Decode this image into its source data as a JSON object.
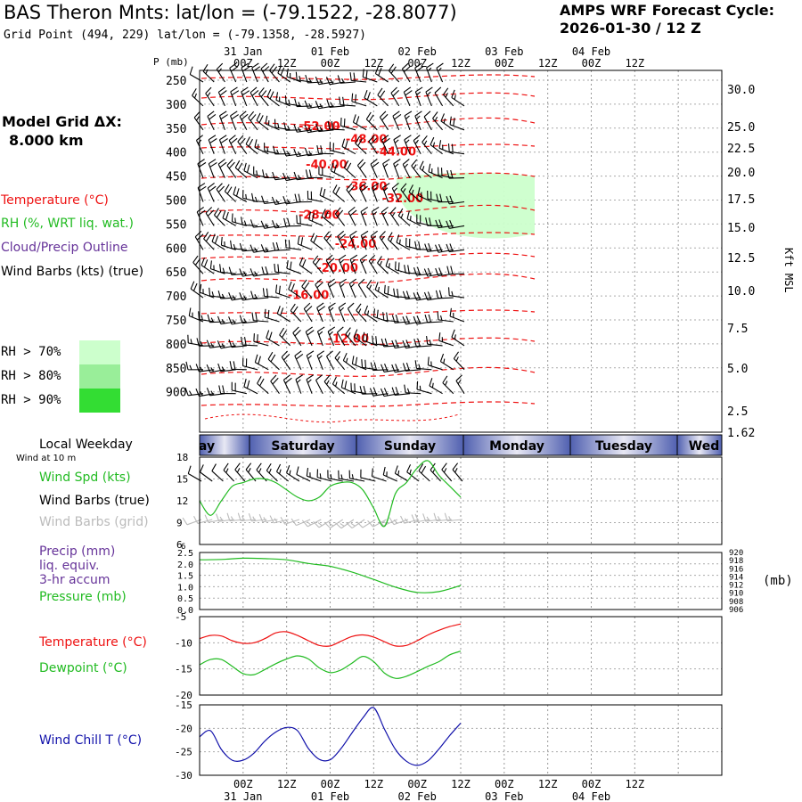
{
  "header": {
    "title": "BAS Theron Mnts:  lat/lon = (-79.1522, -28.8077)",
    "grid_point": "Grid Point (494, 229) lat/lon = (-79.1358, -28.5927)",
    "cycle_line1": "AMPS WRF Forecast Cycle:",
    "cycle_line2": "2026-01-30 / 12  Z",
    "model_dx_label": "Model Grid ΔX:",
    "model_dx_value": "8.000 km"
  },
  "legend": {
    "temperature": "Temperature (°C)",
    "rh": "RH (%, WRT liq. wat.)",
    "cloud": "Cloud/Precip Outline",
    "wind_barbs": "Wind Barbs (kts) (true)",
    "rh70": "RH > 70%",
    "rh80": "RH > 80%",
    "rh90": "RH > 90%",
    "local_weekday": "Local Weekday",
    "wind_at_10m": "Wind at 10 m",
    "wind_spd": "Wind Spd (kts)",
    "wind_barbs_true": "Wind Barbs (true)",
    "wind_barbs_grid": "Wind Barbs (grid)",
    "precip1": "Precip (mm)",
    "precip2": "liq. equiv.",
    "precip3": "3-hr accum",
    "pressure": "Pressure (mb)",
    "temp2": "Temperature (°C)",
    "dewpoint": "Dewpoint (°C)",
    "windchill": "Wind Chill T (°C)"
  },
  "colors": {
    "temperature": "#ee1111",
    "rh70": "#ccffcc",
    "rh80": "#99ee99",
    "rh90": "#33dd33",
    "windspd": "#22bb22",
    "cloud": "#663399",
    "windchill": "#1111aa",
    "weekday_dark": "#5060b0",
    "weekday_light": "#e8e8f4"
  },
  "axes": {
    "p_label": "P (mb)",
    "kft_label": "Kft MSL",
    "mb_unit": "(mb)",
    "time_ticks": [
      "00Z",
      "12Z",
      "00Z",
      "12Z",
      "00Z",
      "12Z",
      "00Z",
      "12Z",
      "00Z",
      "12Z"
    ],
    "date_labels": [
      "31 Jan",
      "01 Feb",
      "02 Feb",
      "03 Feb",
      "04 Feb"
    ],
    "weekdays": [
      "ay",
      "Saturday",
      "Sunday",
      "Monday",
      "Tuesday",
      "Wed"
    ]
  },
  "chart_data": [
    {
      "type": "contour",
      "panel": "sounding",
      "x_unit": "hours since 2026-01-30 12Z",
      "xlim": [
        0,
        144
      ],
      "pressure_levels": [
        250,
        300,
        350,
        400,
        450,
        500,
        550,
        600,
        650,
        700,
        750,
        800,
        850,
        900
      ],
      "right_axis_kft_labels": [
        "30.0",
        "25.0",
        "22.5",
        "20.0",
        "17.5",
        "15.0",
        "12.5",
        "10.0",
        "7.5",
        "5.0",
        "2.5",
        "1.62"
      ],
      "temperature_contour_labels": [
        {
          "text": "-52.00",
          "x": 33,
          "p": 345
        },
        {
          "text": "-48.00",
          "x": 46,
          "p": 372
        },
        {
          "text": "-44.00",
          "x": 54,
          "p": 398
        },
        {
          "text": "-40.00",
          "x": 35,
          "p": 425
        },
        {
          "text": "-36.00",
          "x": 46,
          "p": 470
        },
        {
          "text": "-32.00",
          "x": 56,
          "p": 495
        },
        {
          "text": "-28.00",
          "x": 33,
          "p": 530
        },
        {
          "text": "-24.00",
          "x": 43,
          "p": 590
        },
        {
          "text": "-20.00",
          "x": 38,
          "p": 640
        },
        {
          "text": "-16.00",
          "x": 30,
          "p": 697
        },
        {
          "text": "-12.00",
          "x": 41,
          "p": 788
        }
      ]
    },
    {
      "type": "line",
      "panel": "surface_wind",
      "title": "Wind Spd (kts)",
      "ylim": [
        6,
        18
      ],
      "y_ticks": [
        9,
        12,
        15,
        18
      ],
      "x": [
        0,
        3,
        6,
        9,
        12,
        15,
        18,
        21,
        24,
        27,
        30,
        33,
        36,
        39,
        42,
        45,
        48,
        51,
        54,
        57,
        60,
        63,
        66,
        69,
        72
      ],
      "series": [
        {
          "name": "Wind Spd (kts)",
          "values": [
            12,
            10,
            12,
            14,
            14.5,
            15,
            15,
            14.5,
            13.5,
            12.5,
            12,
            12.5,
            14,
            14.5,
            14.5,
            13.5,
            11,
            8.5,
            13,
            14.5,
            16.5,
            17.5,
            15.5,
            14,
            12.5
          ]
        }
      ]
    },
    {
      "type": "line",
      "panel": "pressure_precip",
      "left_ylim": [
        0,
        2.5
      ],
      "left_ticks": [
        "0.0",
        "0.5",
        "1.0",
        "1.5",
        "2.0",
        "2.5"
      ],
      "right_ylim": [
        906,
        920
      ],
      "right_ticks": [
        "906",
        "908",
        "910",
        "912",
        "914",
        "916",
        "918",
        "920"
      ],
      "x": [
        0,
        6,
        12,
        18,
        24,
        30,
        36,
        42,
        48,
        54,
        60,
        66,
        72
      ],
      "series": [
        {
          "name": "Pressure (mb)",
          "values": [
            918.2,
            918.3,
            918.6,
            918.5,
            918.2,
            917.3,
            916.6,
            915.2,
            913.4,
            911.5,
            910.2,
            910.4,
            911.9
          ]
        }
      ]
    },
    {
      "type": "line",
      "panel": "temperature",
      "ylim": [
        -20,
        -5
      ],
      "y_ticks": [
        -20,
        -15,
        -10,
        -5
      ],
      "x": [
        0,
        3,
        6,
        9,
        12,
        15,
        18,
        21,
        24,
        27,
        30,
        33,
        36,
        39,
        42,
        45,
        48,
        51,
        54,
        57,
        60,
        63,
        66,
        69,
        72
      ],
      "series": [
        {
          "name": "Temperature (°C)",
          "values": [
            -9.2,
            -8.6,
            -8.7,
            -9.6,
            -10.1,
            -10.0,
            -9.2,
            -8.1,
            -7.9,
            -8.6,
            -9.6,
            -10.5,
            -10.6,
            -9.7,
            -8.8,
            -8.5,
            -8.9,
            -9.8,
            -10.6,
            -10.5,
            -9.6,
            -8.5,
            -7.6,
            -6.9,
            -6.4
          ]
        },
        {
          "name": "Dewpoint (°C)",
          "values": [
            -14.2,
            -13.2,
            -13.2,
            -14.5,
            -15.9,
            -16.1,
            -15.1,
            -14.0,
            -13.1,
            -12.5,
            -13.1,
            -14.8,
            -15.7,
            -15.2,
            -13.9,
            -12.6,
            -13.6,
            -15.8,
            -16.8,
            -16.4,
            -15.5,
            -14.5,
            -13.6,
            -12.3,
            -11.6
          ]
        }
      ]
    },
    {
      "type": "line",
      "panel": "windchill",
      "ylim": [
        -30,
        -15
      ],
      "y_ticks": [
        -30,
        -25,
        -20,
        -15
      ],
      "x": [
        0,
        3,
        6,
        9,
        12,
        15,
        18,
        21,
        24,
        27,
        30,
        33,
        36,
        39,
        42,
        45,
        48,
        51,
        54,
        57,
        60,
        63,
        66,
        69,
        72
      ],
      "series": [
        {
          "name": "Wind Chill T (°C)",
          "values": [
            -21.8,
            -20.5,
            -24.5,
            -26.8,
            -26.8,
            -25.3,
            -22.7,
            -20.8,
            -19.8,
            -20.5,
            -24.3,
            -26.6,
            -26.7,
            -24.3,
            -21.0,
            -17.8,
            -15.6,
            -20.2,
            -24.5,
            -27.0,
            -27.9,
            -26.9,
            -24.4,
            -21.5,
            -18.9
          ]
        }
      ]
    }
  ]
}
